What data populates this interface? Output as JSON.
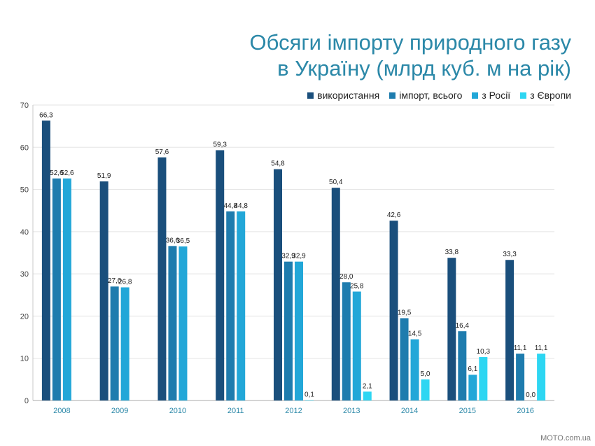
{
  "title_lines": [
    "Обсяги імпорту природного газу",
    "в Україну (млрд куб. м на рік)"
  ],
  "footer": "MOTO.com.ua",
  "chart_data": {
    "type": "bar",
    "categories": [
      "2008",
      "2009",
      "2010",
      "2011",
      "2012",
      "2013",
      "2014",
      "2015",
      "2016"
    ],
    "series": [
      {
        "name": "використання",
        "color": "#1a4f7c",
        "values": [
          66.3,
          51.9,
          57.6,
          59.3,
          54.8,
          50.4,
          42.6,
          33.8,
          33.3
        ],
        "labels": [
          "66,3",
          "51,9",
          "57,6",
          "59,3",
          "54,8",
          "50,4",
          "42,6",
          "33,8",
          "33,3"
        ]
      },
      {
        "name": "імпорт, всього",
        "color": "#1e7cae",
        "values": [
          52.6,
          27.0,
          36.6,
          44.8,
          32.9,
          28.0,
          19.5,
          16.4,
          11.1
        ],
        "labels": [
          "52,6",
          "27,0",
          "36,6",
          "44,8",
          "32,9",
          "28,0",
          "19,5",
          "16,4",
          "11,1"
        ]
      },
      {
        "name": "з Росії",
        "color": "#22a7d8",
        "values": [
          52.6,
          26.8,
          36.5,
          44.8,
          32.9,
          25.8,
          14.5,
          6.1,
          0.0
        ],
        "labels": [
          "52,6",
          "26,8",
          "36,5",
          "44,8",
          "32,9",
          "25,8",
          "14,5",
          "6,1",
          "0,0"
        ]
      },
      {
        "name": "з Європи",
        "color": "#2dd6f2",
        "values": [
          null,
          null,
          null,
          null,
          0.1,
          2.1,
          5.0,
          10.3,
          11.1
        ],
        "labels": [
          null,
          null,
          null,
          null,
          "0,1",
          "2,1",
          "5,0",
          "10,3",
          "11,1"
        ]
      }
    ],
    "ylim": [
      0,
      70
    ],
    "yticks": [
      0,
      10,
      20,
      30,
      40,
      50,
      60,
      70
    ],
    "grid": true,
    "legend_position": "top-right"
  }
}
